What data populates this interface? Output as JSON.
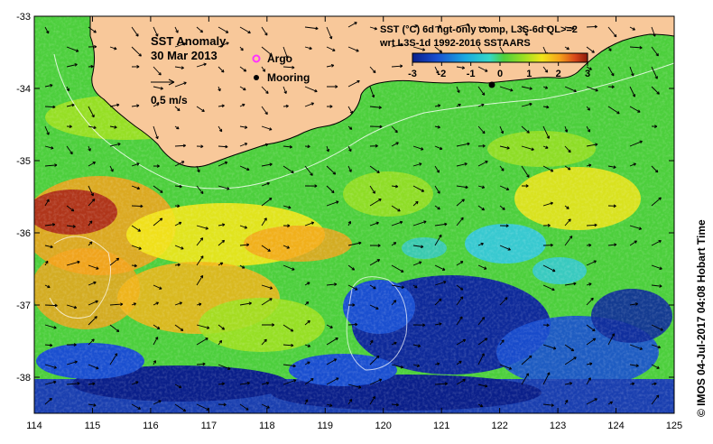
{
  "map": {
    "panel_title": "SST Anomaly",
    "date": "30 Mar 2013",
    "scale_arrow_label": "0.5 m/s",
    "legend": {
      "argo": {
        "label": "Argo",
        "color": "#ff33ff"
      },
      "mooring": {
        "label": "Mooring",
        "color": "#000000"
      }
    },
    "colorbar": {
      "title_line1": "SST (°C) 6d ngt-only comp, L3S-6d QL>=2",
      "title_line2": "wrt L3S-1d 1992-2016 SSTAARS",
      "ticks": [
        "-3",
        "-2",
        "-1",
        "0",
        "1",
        "2",
        "3"
      ],
      "range": [
        -3,
        3
      ],
      "colors": [
        "#0a1f8a",
        "#1a4fd0",
        "#1aa8e0",
        "#35d8c8",
        "#4ccf3c",
        "#9fe021",
        "#f2e51a",
        "#f5a21c",
        "#d8461a",
        "#8b1a0a"
      ]
    },
    "axes": {
      "lon_ticks": [
        "114",
        "115",
        "116",
        "117",
        "118",
        "119",
        "120",
        "121",
        "122",
        "123",
        "124",
        "125"
      ],
      "lat_ticks": [
        "-33",
        "-34",
        "-35",
        "-36",
        "-37",
        "-38"
      ],
      "lon_range": [
        114,
        125
      ],
      "lat_range": [
        -38.5,
        -33
      ]
    },
    "land_color": "#f8c89a",
    "credit": "©  IMOS 04-Jul-2017 04:08 Hobart Time"
  }
}
